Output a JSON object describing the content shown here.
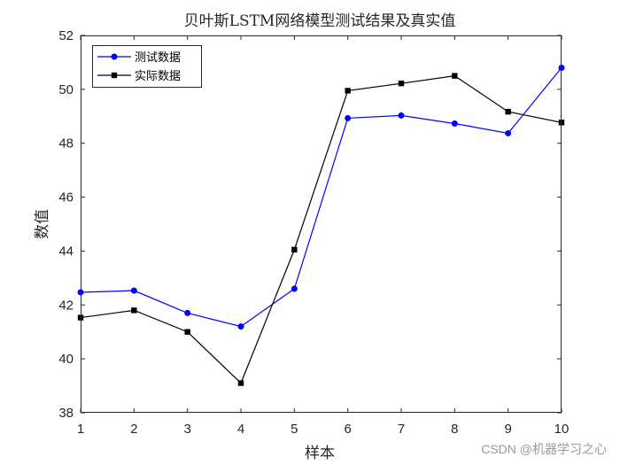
{
  "chart_data": {
    "type": "line",
    "title": "贝叶斯LSTM网络模型测试结果及真实值",
    "xlabel": "样本",
    "ylabel": "数值",
    "x": [
      1,
      2,
      3,
      4,
      5,
      6,
      7,
      8,
      9,
      10
    ],
    "xlim": [
      1,
      10
    ],
    "ylim": [
      38,
      52
    ],
    "xticks": [
      1,
      2,
      3,
      4,
      5,
      6,
      7,
      8,
      9,
      10
    ],
    "yticks": [
      38,
      40,
      42,
      44,
      46,
      48,
      50,
      52
    ],
    "grid": false,
    "legend_position": "top-left",
    "series": [
      {
        "name": "测试数据",
        "color": "#0000ff",
        "marker": "circle",
        "values": [
          42.47,
          42.53,
          41.7,
          41.2,
          42.6,
          48.93,
          49.03,
          48.73,
          48.37,
          50.8
        ]
      },
      {
        "name": "实际数据",
        "color": "#000000",
        "marker": "square",
        "values": [
          41.53,
          41.8,
          41.0,
          39.1,
          44.05,
          49.95,
          50.22,
          50.5,
          49.17,
          48.77
        ]
      }
    ]
  },
  "watermark": "CSDN @机器学习之心"
}
